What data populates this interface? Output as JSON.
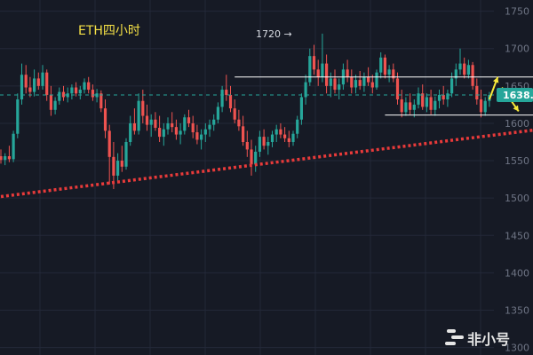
{
  "chart_data": {
    "type": "candlestick",
    "title": "ETH四小时",
    "y_axis": {
      "ticks": [
        1750,
        1700,
        1650,
        1600,
        1550,
        1500,
        1450,
        1400,
        1350,
        1300
      ],
      "range": [
        1290,
        1765
      ],
      "position": "right"
    },
    "current_price": {
      "label": "1638.",
      "value": 1638
    },
    "annotation": {
      "text": "1720 →",
      "value": 1720
    },
    "resistance_line": {
      "value": 1662,
      "x_start": 56,
      "x_end": 140
    },
    "support_line": {
      "value": 1611,
      "x_start": 92,
      "x_end": 131
    },
    "trendline": {
      "start": {
        "x": 0,
        "value": 1502
      },
      "end": {
        "x": 132,
        "value": 1594
      }
    },
    "projection_arrows": [
      {
        "direction": "up",
        "from": {
          "x": 117,
          "value": 1632
        },
        "to": {
          "x": 119,
          "value": 1662
        }
      },
      {
        "direction": "down",
        "from": {
          "x": 120,
          "value": 1648
        },
        "to": {
          "x": 124,
          "value": 1616
        }
      }
    ],
    "candles": [
      {
        "o": 1556,
        "h": 1565,
        "l": 1546,
        "c": 1551
      },
      {
        "o": 1551,
        "h": 1560,
        "l": 1544,
        "c": 1556
      },
      {
        "o": 1556,
        "h": 1570,
        "l": 1548,
        "c": 1552
      },
      {
        "o": 1552,
        "h": 1590,
        "l": 1548,
        "c": 1586
      },
      {
        "o": 1586,
        "h": 1640,
        "l": 1580,
        "c": 1632
      },
      {
        "o": 1632,
        "h": 1680,
        "l": 1625,
        "c": 1665
      },
      {
        "o": 1665,
        "h": 1678,
        "l": 1640,
        "c": 1648
      },
      {
        "o": 1648,
        "h": 1662,
        "l": 1635,
        "c": 1642
      },
      {
        "o": 1642,
        "h": 1672,
        "l": 1636,
        "c": 1660
      },
      {
        "o": 1660,
        "h": 1668,
        "l": 1645,
        "c": 1650
      },
      {
        "o": 1650,
        "h": 1678,
        "l": 1645,
        "c": 1668
      },
      {
        "o": 1668,
        "h": 1672,
        "l": 1630,
        "c": 1638
      },
      {
        "o": 1638,
        "h": 1650,
        "l": 1610,
        "c": 1618
      },
      {
        "o": 1618,
        "h": 1635,
        "l": 1612,
        "c": 1630
      },
      {
        "o": 1630,
        "h": 1648,
        "l": 1625,
        "c": 1642
      },
      {
        "o": 1642,
        "h": 1650,
        "l": 1630,
        "c": 1635
      },
      {
        "o": 1635,
        "h": 1648,
        "l": 1628,
        "c": 1640
      },
      {
        "o": 1640,
        "h": 1652,
        "l": 1632,
        "c": 1648
      },
      {
        "o": 1648,
        "h": 1655,
        "l": 1636,
        "c": 1640
      },
      {
        "o": 1640,
        "h": 1650,
        "l": 1632,
        "c": 1645
      },
      {
        "o": 1645,
        "h": 1660,
        "l": 1640,
        "c": 1655
      },
      {
        "o": 1655,
        "h": 1662,
        "l": 1640,
        "c": 1645
      },
      {
        "o": 1645,
        "h": 1652,
        "l": 1630,
        "c": 1635
      },
      {
        "o": 1635,
        "h": 1646,
        "l": 1628,
        "c": 1640
      },
      {
        "o": 1640,
        "h": 1644,
        "l": 1615,
        "c": 1620
      },
      {
        "o": 1620,
        "h": 1632,
        "l": 1580,
        "c": 1590
      },
      {
        "o": 1590,
        "h": 1598,
        "l": 1518,
        "c": 1555
      },
      {
        "o": 1555,
        "h": 1575,
        "l": 1512,
        "c": 1530
      },
      {
        "o": 1530,
        "h": 1560,
        "l": 1522,
        "c": 1550
      },
      {
        "o": 1550,
        "h": 1570,
        "l": 1535,
        "c": 1542
      },
      {
        "o": 1542,
        "h": 1580,
        "l": 1538,
        "c": 1575
      },
      {
        "o": 1575,
        "h": 1610,
        "l": 1570,
        "c": 1600
      },
      {
        "o": 1600,
        "h": 1620,
        "l": 1585,
        "c": 1590
      },
      {
        "o": 1590,
        "h": 1640,
        "l": 1585,
        "c": 1630
      },
      {
        "o": 1630,
        "h": 1645,
        "l": 1600,
        "c": 1610
      },
      {
        "o": 1610,
        "h": 1625,
        "l": 1590,
        "c": 1598
      },
      {
        "o": 1598,
        "h": 1612,
        "l": 1582,
        "c": 1605
      },
      {
        "o": 1605,
        "h": 1615,
        "l": 1590,
        "c": 1594
      },
      {
        "o": 1594,
        "h": 1610,
        "l": 1575,
        "c": 1582
      },
      {
        "o": 1582,
        "h": 1600,
        "l": 1570,
        "c": 1592
      },
      {
        "o": 1592,
        "h": 1608,
        "l": 1585,
        "c": 1600
      },
      {
        "o": 1600,
        "h": 1615,
        "l": 1588,
        "c": 1595
      },
      {
        "o": 1595,
        "h": 1605,
        "l": 1578,
        "c": 1585
      },
      {
        "o": 1585,
        "h": 1600,
        "l": 1572,
        "c": 1590
      },
      {
        "o": 1590,
        "h": 1612,
        "l": 1585,
        "c": 1608
      },
      {
        "o": 1608,
        "h": 1618,
        "l": 1595,
        "c": 1600
      },
      {
        "o": 1600,
        "h": 1610,
        "l": 1580,
        "c": 1588
      },
      {
        "o": 1588,
        "h": 1598,
        "l": 1572,
        "c": 1578
      },
      {
        "o": 1578,
        "h": 1592,
        "l": 1565,
        "c": 1585
      },
      {
        "o": 1585,
        "h": 1600,
        "l": 1575,
        "c": 1592
      },
      {
        "o": 1592,
        "h": 1605,
        "l": 1582,
        "c": 1598
      },
      {
        "o": 1598,
        "h": 1612,
        "l": 1590,
        "c": 1605
      },
      {
        "o": 1605,
        "h": 1628,
        "l": 1600,
        "c": 1622
      },
      {
        "o": 1622,
        "h": 1650,
        "l": 1615,
        "c": 1645
      },
      {
        "o": 1645,
        "h": 1665,
        "l": 1630,
        "c": 1638
      },
      {
        "o": 1638,
        "h": 1650,
        "l": 1615,
        "c": 1620
      },
      {
        "o": 1620,
        "h": 1632,
        "l": 1600,
        "c": 1605
      },
      {
        "o": 1605,
        "h": 1618,
        "l": 1590,
        "c": 1596
      },
      {
        "o": 1596,
        "h": 1610,
        "l": 1570,
        "c": 1575
      },
      {
        "o": 1575,
        "h": 1590,
        "l": 1555,
        "c": 1565
      },
      {
        "o": 1565,
        "h": 1578,
        "l": 1530,
        "c": 1545
      },
      {
        "o": 1545,
        "h": 1570,
        "l": 1535,
        "c": 1562
      },
      {
        "o": 1562,
        "h": 1590,
        "l": 1555,
        "c": 1582
      },
      {
        "o": 1582,
        "h": 1592,
        "l": 1565,
        "c": 1570
      },
      {
        "o": 1570,
        "h": 1582,
        "l": 1558,
        "c": 1575
      },
      {
        "o": 1575,
        "h": 1590,
        "l": 1568,
        "c": 1585
      },
      {
        "o": 1585,
        "h": 1598,
        "l": 1575,
        "c": 1592
      },
      {
        "o": 1592,
        "h": 1600,
        "l": 1580,
        "c": 1585
      },
      {
        "o": 1585,
        "h": 1595,
        "l": 1575,
        "c": 1580
      },
      {
        "o": 1580,
        "h": 1590,
        "l": 1568,
        "c": 1575
      },
      {
        "o": 1575,
        "h": 1590,
        "l": 1570,
        "c": 1586
      },
      {
        "o": 1586,
        "h": 1610,
        "l": 1580,
        "c": 1605
      },
      {
        "o": 1605,
        "h": 1640,
        "l": 1598,
        "c": 1635
      },
      {
        "o": 1635,
        "h": 1665,
        "l": 1625,
        "c": 1655
      },
      {
        "o": 1655,
        "h": 1700,
        "l": 1650,
        "c": 1690
      },
      {
        "o": 1690,
        "h": 1705,
        "l": 1665,
        "c": 1672
      },
      {
        "o": 1672,
        "h": 1685,
        "l": 1650,
        "c": 1662
      },
      {
        "o": 1662,
        "h": 1720,
        "l": 1655,
        "c": 1680
      },
      {
        "o": 1680,
        "h": 1692,
        "l": 1640,
        "c": 1650
      },
      {
        "o": 1650,
        "h": 1668,
        "l": 1635,
        "c": 1660
      },
      {
        "o": 1660,
        "h": 1672,
        "l": 1640,
        "c": 1645
      },
      {
        "o": 1645,
        "h": 1660,
        "l": 1632,
        "c": 1652
      },
      {
        "o": 1652,
        "h": 1680,
        "l": 1645,
        "c": 1672
      },
      {
        "o": 1672,
        "h": 1685,
        "l": 1655,
        "c": 1662
      },
      {
        "o": 1662,
        "h": 1672,
        "l": 1640,
        "c": 1648
      },
      {
        "o": 1648,
        "h": 1665,
        "l": 1640,
        "c": 1658
      },
      {
        "o": 1658,
        "h": 1670,
        "l": 1645,
        "c": 1650
      },
      {
        "o": 1650,
        "h": 1668,
        "l": 1642,
        "c": 1662
      },
      {
        "o": 1662,
        "h": 1675,
        "l": 1650,
        "c": 1655
      },
      {
        "o": 1655,
        "h": 1665,
        "l": 1640,
        "c": 1648
      },
      {
        "o": 1648,
        "h": 1672,
        "l": 1645,
        "c": 1668
      },
      {
        "o": 1668,
        "h": 1695,
        "l": 1660,
        "c": 1688
      },
      {
        "o": 1688,
        "h": 1692,
        "l": 1660,
        "c": 1665
      },
      {
        "o": 1665,
        "h": 1678,
        "l": 1655,
        "c": 1672
      },
      {
        "o": 1672,
        "h": 1680,
        "l": 1655,
        "c": 1660
      },
      {
        "o": 1660,
        "h": 1668,
        "l": 1625,
        "c": 1632
      },
      {
        "o": 1632,
        "h": 1645,
        "l": 1608,
        "c": 1615
      },
      {
        "o": 1615,
        "h": 1635,
        "l": 1610,
        "c": 1628
      },
      {
        "o": 1628,
        "h": 1640,
        "l": 1612,
        "c": 1618
      },
      {
        "o": 1618,
        "h": 1632,
        "l": 1608,
        "c": 1625
      },
      {
        "o": 1625,
        "h": 1648,
        "l": 1620,
        "c": 1640
      },
      {
        "o": 1640,
        "h": 1652,
        "l": 1618,
        "c": 1622
      },
      {
        "o": 1622,
        "h": 1640,
        "l": 1615,
        "c": 1635
      },
      {
        "o": 1635,
        "h": 1645,
        "l": 1612,
        "c": 1618
      },
      {
        "o": 1618,
        "h": 1636,
        "l": 1610,
        "c": 1630
      },
      {
        "o": 1630,
        "h": 1645,
        "l": 1620,
        "c": 1638
      },
      {
        "o": 1638,
        "h": 1650,
        "l": 1625,
        "c": 1632
      },
      {
        "o": 1632,
        "h": 1645,
        "l": 1622,
        "c": 1640
      },
      {
        "o": 1640,
        "h": 1668,
        "l": 1635,
        "c": 1660
      },
      {
        "o": 1660,
        "h": 1680,
        "l": 1650,
        "c": 1672
      },
      {
        "o": 1672,
        "h": 1700,
        "l": 1665,
        "c": 1680
      },
      {
        "o": 1680,
        "h": 1688,
        "l": 1660,
        "c": 1665
      },
      {
        "o": 1665,
        "h": 1685,
        "l": 1660,
        "c": 1678
      },
      {
        "o": 1678,
        "h": 1682,
        "l": 1645,
        "c": 1650
      },
      {
        "o": 1650,
        "h": 1660,
        "l": 1625,
        "c": 1632
      },
      {
        "o": 1632,
        "h": 1645,
        "l": 1608,
        "c": 1615
      },
      {
        "o": 1615,
        "h": 1635,
        "l": 1610,
        "c": 1630
      },
      {
        "o": 1630,
        "h": 1642,
        "l": 1622,
        "c": 1638
      }
    ]
  },
  "colors": {
    "background": "#161a25",
    "grid": "#232838",
    "up": "#26a69a",
    "down": "#ef5350",
    "title": "#f5e146",
    "tick_text": "#6f7585",
    "price_label_bg": "#26a69a",
    "trendline": "#e83a3a",
    "arrow": "#f7e93a",
    "level_line": "#ffffff"
  },
  "watermark": {
    "text": "非小号"
  }
}
